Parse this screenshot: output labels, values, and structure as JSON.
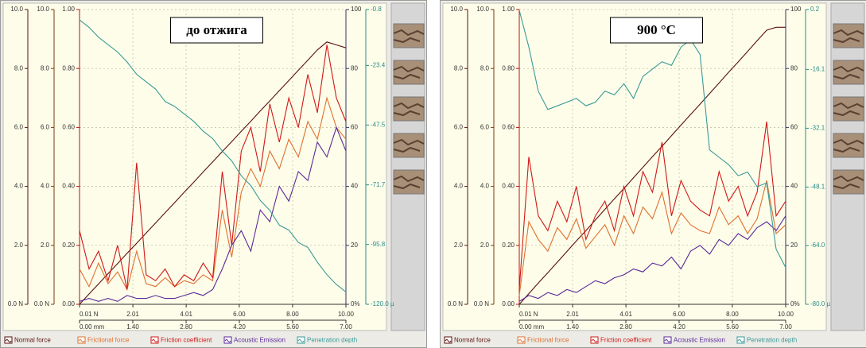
{
  "chart_data": [
    {
      "type": "line",
      "title": "до отжига",
      "grid": true,
      "x": [
        0,
        0.25,
        0.5,
        0.75,
        1,
        1.25,
        1.5,
        1.75,
        2,
        2.25,
        2.5,
        2.75,
        3,
        3.25,
        3.5,
        3.75,
        4,
        4.25,
        4.5,
        4.75,
        5,
        5.25,
        5.5,
        5.75,
        6,
        6.25,
        6.5,
        6.75,
        7
      ],
      "xlim": [
        0,
        7
      ],
      "xticks": [
        {
          "value": 0,
          "label": "0.00 mm"
        },
        {
          "value": 1.4,
          "label": "1.40"
        },
        {
          "value": 2.8,
          "label": "2.80"
        },
        {
          "value": 4.2,
          "label": "4.20"
        },
        {
          "value": 5.6,
          "label": "5.60"
        },
        {
          "value": 7,
          "label": "7.00"
        }
      ],
      "x2lim": [
        0.01,
        10
      ],
      "x2ticks": [
        {
          "value": 0.01,
          "label": "0.01 N"
        },
        2.01,
        4.01,
        {
          "value": 6,
          "label": "6.00"
        },
        {
          "value": 8,
          "label": "8.00"
        },
        {
          "value": 10,
          "label": "10.00"
        }
      ],
      "ylim": [
        0,
        10
      ],
      "yticks": [
        {
          "value": 0,
          "label": "0.0 N"
        },
        {
          "value": 2,
          "label": "2.0"
        },
        {
          "value": 4,
          "label": "4.0"
        },
        {
          "value": 6,
          "label": "6.0"
        },
        {
          "value": 8,
          "label": "8.0"
        },
        {
          "value": 10,
          "label": "10.0"
        }
      ],
      "y2lim": [
        0,
        10
      ],
      "y2ticks": [
        {
          "value": 0,
          "label": "0.0 N"
        },
        {
          "value": 2,
          "label": "2.0"
        },
        {
          "value": 4,
          "label": "4.0"
        },
        {
          "value": 6,
          "label": "6.0"
        },
        {
          "value": 8,
          "label": "8.0"
        },
        {
          "value": 10,
          "label": "10.0"
        }
      ],
      "y3lim": [
        0,
        1
      ],
      "y3ticks": [
        {
          "value": 0,
          "label": "0.00"
        },
        {
          "value": 0.2,
          "label": "0.20"
        },
        {
          "value": 0.4,
          "label": "0.40"
        },
        {
          "value": 0.6,
          "label": "0.60"
        },
        {
          "value": 0.8,
          "label": "0.80"
        },
        {
          "value": 1,
          "label": "1.00"
        }
      ],
      "y4lim": [
        0,
        100
      ],
      "y4ticks": [
        {
          "value": 0,
          "label": "0%"
        },
        20,
        40,
        60,
        80,
        100
      ],
      "y5lim": [
        -120,
        -0.8
      ],
      "y5ticks": [
        {
          "value": -120,
          "label": "-120.0 µ"
        },
        -95.8,
        -71.7,
        -47.5,
        -23.4,
        -0.8
      ],
      "series": [
        {
          "name": "Normal force",
          "color": "#5a1010",
          "axis": "y",
          "values": [
            0,
            0.35,
            0.69,
            1.04,
            1.38,
            1.73,
            2.07,
            2.42,
            2.76,
            3.11,
            3.45,
            3.8,
            4.14,
            4.49,
            4.83,
            5.18,
            5.52,
            5.87,
            6.21,
            6.56,
            6.9,
            7.25,
            7.59,
            7.94,
            8.28,
            8.63,
            8.9,
            8.8,
            8.7
          ]
        },
        {
          "name": "Frictional force",
          "color": "#e07030",
          "axis": "y2",
          "values": [
            1.2,
            0.6,
            1.4,
            0.7,
            1.1,
            0.5,
            1.8,
            0.7,
            0.6,
            0.9,
            0.6,
            0.8,
            0.7,
            1.0,
            0.8,
            3.2,
            1.6,
            3.8,
            4.6,
            4.0,
            5.2,
            4.6,
            5.6,
            5.0,
            6.2,
            5.6,
            7.0,
            6.0,
            5.6
          ]
        },
        {
          "name": "Friction coefficient",
          "color": "#d01818",
          "axis": "y3",
          "values": [
            0.25,
            0.12,
            0.18,
            0.08,
            0.2,
            0.05,
            0.48,
            0.1,
            0.08,
            0.12,
            0.06,
            0.1,
            0.08,
            0.14,
            0.09,
            0.45,
            0.2,
            0.52,
            0.6,
            0.45,
            0.68,
            0.55,
            0.7,
            0.6,
            0.78,
            0.65,
            0.88,
            0.7,
            0.62
          ]
        },
        {
          "name": "Acoustic Emission",
          "color": "#5a2a9a",
          "axis": "y4",
          "values": [
            1,
            2,
            1,
            2,
            1,
            3,
            2,
            2,
            3,
            2,
            2,
            3,
            4,
            3,
            5,
            12,
            20,
            25,
            18,
            32,
            28,
            40,
            35,
            45,
            42,
            55,
            50,
            60,
            52
          ]
        },
        {
          "name": "Penetration depth",
          "color": "#3a9a9a",
          "axis": "y5",
          "values": [
            -5,
            -8,
            -12,
            -15,
            -18,
            -22,
            -27,
            -30,
            -33,
            -38,
            -40,
            -43,
            -46,
            -50,
            -53,
            -58,
            -62,
            -68,
            -72,
            -78,
            -82,
            -88,
            -90,
            -95,
            -97,
            -103,
            -108,
            -112,
            -115
          ]
        }
      ]
    },
    {
      "type": "line",
      "title": "900 °C",
      "grid": true,
      "x": [
        0,
        0.25,
        0.5,
        0.75,
        1,
        1.25,
        1.5,
        1.75,
        2,
        2.25,
        2.5,
        2.75,
        3,
        3.25,
        3.5,
        3.75,
        4,
        4.25,
        4.5,
        4.75,
        5,
        5.25,
        5.5,
        5.75,
        6,
        6.25,
        6.5,
        6.75,
        7
      ],
      "xlim": [
        0,
        7
      ],
      "xticks": [
        {
          "value": 0,
          "label": "0.00 mm"
        },
        {
          "value": 1.4,
          "label": "1.40"
        },
        {
          "value": 2.8,
          "label": "2.80"
        },
        {
          "value": 4.2,
          "label": "4.20"
        },
        {
          "value": 5.6,
          "label": "5.60"
        },
        {
          "value": 7,
          "label": "7.00"
        }
      ],
      "x2lim": [
        0.01,
        10
      ],
      "x2ticks": [
        {
          "value": 0.01,
          "label": "0.01 N"
        },
        2.01,
        4.01,
        {
          "value": 6,
          "label": "6.00"
        },
        {
          "value": 8,
          "label": "8.00"
        },
        {
          "value": 10,
          "label": "10.00"
        }
      ],
      "ylim": [
        0,
        10
      ],
      "yticks": [
        {
          "value": 0,
          "label": "0.0 N"
        },
        {
          "value": 2,
          "label": "2.0"
        },
        {
          "value": 4,
          "label": "4.0"
        },
        {
          "value": 6,
          "label": "6.0"
        },
        {
          "value": 8,
          "label": "8.0"
        },
        {
          "value": 10,
          "label": "10.0"
        }
      ],
      "y2lim": [
        0,
        10
      ],
      "y2ticks": [
        {
          "value": 0,
          "label": "0.0 N"
        },
        {
          "value": 2,
          "label": "2.0"
        },
        {
          "value": 4,
          "label": "4.0"
        },
        {
          "value": 6,
          "label": "6.0"
        },
        {
          "value": 8,
          "label": "8.0"
        },
        {
          "value": 10,
          "label": "10.0"
        }
      ],
      "y3lim": [
        0,
        1
      ],
      "y3ticks": [
        {
          "value": 0,
          "label": "0.00"
        },
        {
          "value": 0.2,
          "label": "0.20"
        },
        {
          "value": 0.4,
          "label": "0.40"
        },
        {
          "value": 0.6,
          "label": "0.60"
        },
        {
          "value": 0.8,
          "label": "0.80"
        },
        {
          "value": 1,
          "label": "1.00"
        }
      ],
      "y4lim": [
        0,
        100
      ],
      "y4ticks": [
        {
          "value": 0,
          "label": "0%"
        },
        20,
        40,
        60,
        80,
        100
      ],
      "y5lim": [
        -80,
        0.2
      ],
      "y5ticks": [
        {
          "value": -80,
          "label": "-80.0 µ"
        },
        {
          "value": -64,
          "label": "-64.0"
        },
        -48.1,
        -32.1,
        -16.1,
        0.2
      ],
      "series": [
        {
          "name": "Normal force",
          "color": "#5a1010",
          "axis": "y",
          "values": [
            0,
            0.36,
            0.72,
            1.07,
            1.43,
            1.79,
            2.15,
            2.5,
            2.86,
            3.22,
            3.58,
            3.93,
            4.29,
            4.65,
            5.01,
            5.36,
            5.72,
            6.08,
            6.44,
            6.79,
            7.15,
            7.51,
            7.87,
            8.22,
            8.58,
            8.94,
            9.3,
            9.4,
            9.4
          ]
        },
        {
          "name": "Frictional force",
          "color": "#e07030",
          "axis": "y2",
          "values": [
            0.3,
            2.8,
            2.2,
            1.8,
            2.6,
            2.2,
            2.9,
            1.9,
            2.3,
            2.7,
            2.0,
            3.0,
            2.4,
            3.3,
            2.9,
            3.8,
            2.4,
            3.1,
            2.7,
            2.5,
            2.4,
            3.3,
            2.7,
            3.0,
            2.4,
            2.9,
            4.2,
            2.4,
            2.7
          ]
        },
        {
          "name": "Friction coefficient",
          "color": "#d01818",
          "axis": "y3",
          "values": [
            0.05,
            0.5,
            0.3,
            0.25,
            0.35,
            0.28,
            0.4,
            0.22,
            0.3,
            0.35,
            0.25,
            0.4,
            0.3,
            0.45,
            0.38,
            0.55,
            0.3,
            0.42,
            0.35,
            0.32,
            0.3,
            0.45,
            0.35,
            0.4,
            0.3,
            0.38,
            0.62,
            0.3,
            0.35
          ]
        },
        {
          "name": "Acoustic Emission",
          "color": "#5a2a9a",
          "axis": "y4",
          "values": [
            1,
            3,
            2,
            4,
            3,
            5,
            4,
            6,
            8,
            7,
            9,
            10,
            12,
            11,
            14,
            13,
            16,
            12,
            18,
            20,
            17,
            22,
            20,
            24,
            22,
            26,
            28,
            25,
            30
          ]
        },
        {
          "name": "Penetration depth",
          "color": "#3a9a9a",
          "axis": "y5",
          "values": [
            0,
            -10,
            -22,
            -27,
            -26,
            -25,
            -24,
            -26,
            -25,
            -22,
            -23,
            -20,
            -24,
            -18,
            -16,
            -14,
            -15,
            -10,
            -8,
            -12,
            -38,
            -40,
            -42,
            -45,
            -44,
            -48,
            -47,
            -65,
            -70
          ]
        }
      ]
    }
  ]
}
